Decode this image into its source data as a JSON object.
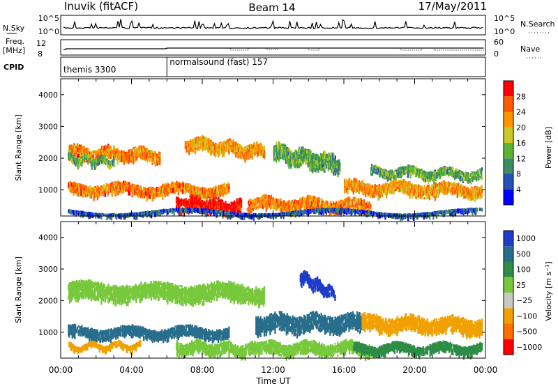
{
  "header": {
    "station": "Inuvik (fitACF)",
    "beam": "Beam 14",
    "date": "17/May/2011"
  },
  "noise_panel": {
    "left_label": "N.Sky",
    "right_label": "N.Search",
    "left_ticks": [
      "10^5",
      "10^0"
    ],
    "right_ticks": [
      "10^5",
      "10^0"
    ]
  },
  "freq_panel": {
    "left_label_1": "Freq.",
    "left_label_2": "[MHz]",
    "right_label": "Nave",
    "left_ticks": [
      "12",
      "8"
    ],
    "right_ticks": [
      "60",
      "0"
    ]
  },
  "cpid_panel": {
    "label": "CPID",
    "modes": [
      {
        "name": "themis 3300",
        "start_hour": 0
      },
      {
        "name": "normalsound (fast) 157",
        "start_hour": 6
      }
    ]
  },
  "colors": {
    "power_scale": [
      "#0000ff",
      "#2850b4",
      "#3c8c64",
      "#5ab432",
      "#c8c828",
      "#ff9600",
      "#ff5a00",
      "#ff0000"
    ],
    "velocity_scale": [
      "#1e3cc8",
      "#286e8c",
      "#2d8c46",
      "#78c83c",
      "#c8c8c0",
      "#f0a000",
      "#ff6e00",
      "#ff0000"
    ]
  },
  "chart_data": [
    {
      "type": "heatmap",
      "ylabel": "Slant Range [km]",
      "xlabel": "",
      "xlim": [
        0,
        24
      ],
      "ylim": [
        180,
        4500
      ],
      "yticks": [
        "1000",
        "2000",
        "3000",
        "4000"
      ],
      "colorbar": {
        "label": "Power [dB]",
        "ticks": [
          "4",
          "8",
          "12",
          "16",
          "20",
          "24",
          "28"
        ],
        "range": [
          0,
          30
        ]
      },
      "echo_bands": [
        {
          "start_hour": 0.4,
          "end_hour": 5.6,
          "range_start_km": 2200,
          "range_end_km": 2100,
          "width_km": 350,
          "level": 22
        },
        {
          "start_hour": 0.4,
          "end_hour": 3.0,
          "range_start_km": 2000,
          "range_end_km": 1900,
          "width_km": 200,
          "level": 12
        },
        {
          "start_hour": 0.4,
          "end_hour": 9.5,
          "range_start_km": 1050,
          "range_end_km": 1000,
          "width_km": 300,
          "level": 22
        },
        {
          "start_hour": 6.5,
          "end_hour": 10.2,
          "range_start_km": 600,
          "range_end_km": 450,
          "width_km": 400,
          "level": 29
        },
        {
          "start_hour": 7.0,
          "end_hour": 11.5,
          "range_start_km": 2500,
          "range_end_km": 2200,
          "width_km": 350,
          "level": 20
        },
        {
          "start_hour": 10.5,
          "end_hour": 17.5,
          "range_start_km": 600,
          "range_end_km": 500,
          "width_km": 350,
          "level": 22
        },
        {
          "start_hour": 12.0,
          "end_hour": 15.8,
          "range_start_km": 2200,
          "range_end_km": 1800,
          "width_km": 500,
          "level": 12
        },
        {
          "start_hour": 16.0,
          "end_hour": 23.8,
          "range_start_km": 1100,
          "range_end_km": 1000,
          "width_km": 350,
          "level": 20
        },
        {
          "start_hour": 17.5,
          "end_hour": 23.8,
          "range_start_km": 1600,
          "range_end_km": 1500,
          "width_km": 250,
          "level": 12
        },
        {
          "start_hour": 0.4,
          "end_hour": 23.8,
          "range_start_km": 300,
          "range_end_km": 300,
          "width_km": 100,
          "level": 6
        }
      ]
    },
    {
      "type": "heatmap",
      "ylabel": "Slant Range [km]",
      "xlabel": "Time UT",
      "xlim": [
        0,
        24
      ],
      "ylim": [
        180,
        4500
      ],
      "yticks": [
        "1000",
        "2000",
        "3000",
        "4000"
      ],
      "xticks": [
        "00:00",
        "04:00",
        "08:00",
        "12:00",
        "16:00",
        "20:00",
        "00:00"
      ],
      "colorbar": {
        "label": "Velocity [m s⁻¹]",
        "ticks": [
          "1000",
          "500",
          "100",
          "25",
          "−25",
          "−100",
          "−500",
          "−1000"
        ],
        "range": [
          -1000,
          1000
        ]
      },
      "echo_bands": [
        {
          "start_hour": 0.4,
          "end_hour": 11.5,
          "range_start_km": 2300,
          "range_end_km": 2250,
          "width_km": 500,
          "level": 0
        },
        {
          "start_hour": 0.4,
          "end_hour": 9.5,
          "range_start_km": 1000,
          "range_end_km": 1000,
          "width_km": 300,
          "level": 150
        },
        {
          "start_hour": 0.4,
          "end_hour": 4.5,
          "range_start_km": 550,
          "range_end_km": 600,
          "width_km": 150,
          "level": -300
        },
        {
          "start_hour": 6.5,
          "end_hour": 11.0,
          "range_start_km": 550,
          "range_end_km": 450,
          "width_km": 350,
          "level": 0
        },
        {
          "start_hour": 11.0,
          "end_hour": 17.0,
          "range_start_km": 1300,
          "range_end_km": 1300,
          "width_km": 500,
          "level": 150
        },
        {
          "start_hour": 13.5,
          "end_hour": 15.5,
          "range_start_km": 2800,
          "range_end_km": 2200,
          "width_km": 300,
          "level": 700
        },
        {
          "start_hour": 11.0,
          "end_hour": 17.5,
          "range_start_km": 500,
          "range_end_km": 500,
          "width_km": 350,
          "level": 0
        },
        {
          "start_hour": 17.0,
          "end_hour": 23.8,
          "range_start_km": 1300,
          "range_end_km": 1200,
          "width_km": 450,
          "level": -300
        },
        {
          "start_hour": 16.5,
          "end_hour": 23.8,
          "range_start_km": 500,
          "range_end_km": 500,
          "width_km": 250,
          "level": 30
        }
      ]
    }
  ]
}
